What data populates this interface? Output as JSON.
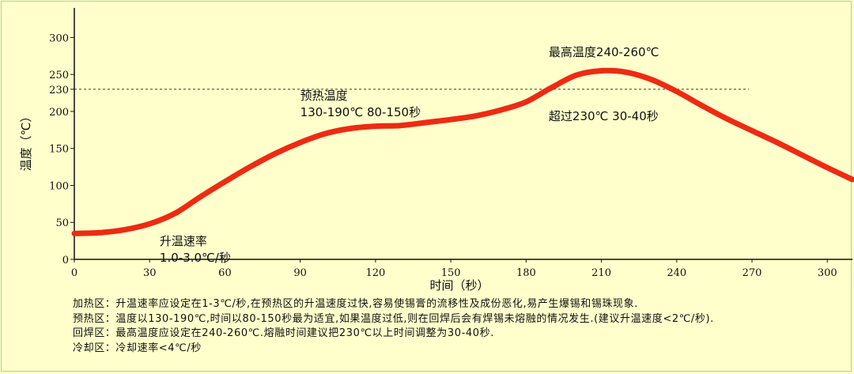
{
  "chart_data": {
    "type": "line",
    "title": "",
    "xlabel": "时间（秒）",
    "ylabel": "温度（℃）",
    "xlim": [
      0,
      310
    ],
    "ylim": [
      0,
      340
    ],
    "x_ticks": [
      0,
      30,
      60,
      90,
      120,
      150,
      180,
      210,
      240,
      270,
      300
    ],
    "y_ticks": [
      0,
      50,
      100,
      150,
      200,
      230,
      250,
      300
    ],
    "grid": false,
    "series": [
      {
        "color": "#ee2a12",
        "x": [
          0,
          10,
          20,
          30,
          40,
          50,
          60,
          70,
          80,
          90,
          100,
          110,
          120,
          130,
          140,
          150,
          160,
          170,
          180,
          190,
          200,
          210,
          220,
          230,
          240,
          250,
          260,
          270,
          280,
          290,
          300,
          310
        ],
        "y": [
          35,
          36,
          40,
          48,
          62,
          84,
          105,
          125,
          143,
          158,
          170,
          177,
          180,
          181,
          185,
          189,
          194,
          202,
          213,
          232,
          249,
          255,
          253,
          243,
          227,
          208,
          190,
          174,
          158,
          141,
          124,
          108
        ]
      }
    ],
    "reference_lines": [
      {
        "axis": "y",
        "value": 230,
        "style": "dotted",
        "color": "#333333"
      }
    ],
    "annotations": [
      {
        "lines": [
          "升温速率",
          "1.0-3.0℃/秒"
        ],
        "x": 34,
        "y": 19
      },
      {
        "lines": [
          "预热温度",
          "130-190℃ 80-150秒"
        ],
        "x": 90,
        "y": 216
      },
      {
        "lines": [
          "最高温度240-260℃"
        ],
        "x": 189,
        "y": 275
      },
      {
        "lines": [
          "超过230℃ 30-40秒"
        ],
        "x": 189,
        "y": 188
      }
    ]
  },
  "notes": [
    {
      "key": "加热区：",
      "text": "升温速率应设定在1-3℃/秒,在预热区的升温速度过快,容易使锡膏的流移性及成份恶化,易产生爆锡和锡珠现象."
    },
    {
      "key": "预热区：",
      "text": "温度以130-190℃,时间以80-150秒最为适宜,如果温度过低,则在回焊后会有焊锡未熔融的情况发生.(建议升温速度<2℃/秒)."
    },
    {
      "key": "回焊区：",
      "text": "最高温度应设定在240-260℃.熔融时间建议把230℃以上时间调整为30-40秒."
    },
    {
      "key": "冷却区：",
      "text": "冷却速率<4℃/秒"
    }
  ]
}
